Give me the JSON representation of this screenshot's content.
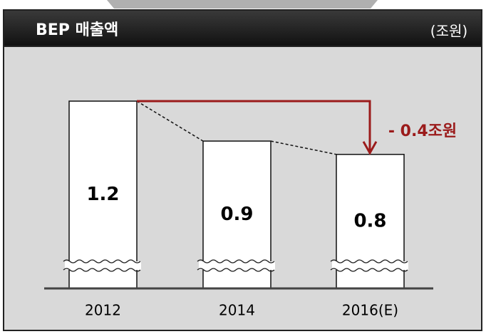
{
  "chart_data": {
    "type": "bar",
    "title": "BEP 매출액",
    "unit": "(조원)",
    "categories": [
      "2012",
      "2014",
      "2016(E)"
    ],
    "values": [
      1.2,
      0.9,
      0.8
    ],
    "color": "#ffffff",
    "ylim": [
      0.5,
      1.4
    ],
    "annotation": "- 0.4조원",
    "annotation_color": "#9b1b1b"
  }
}
